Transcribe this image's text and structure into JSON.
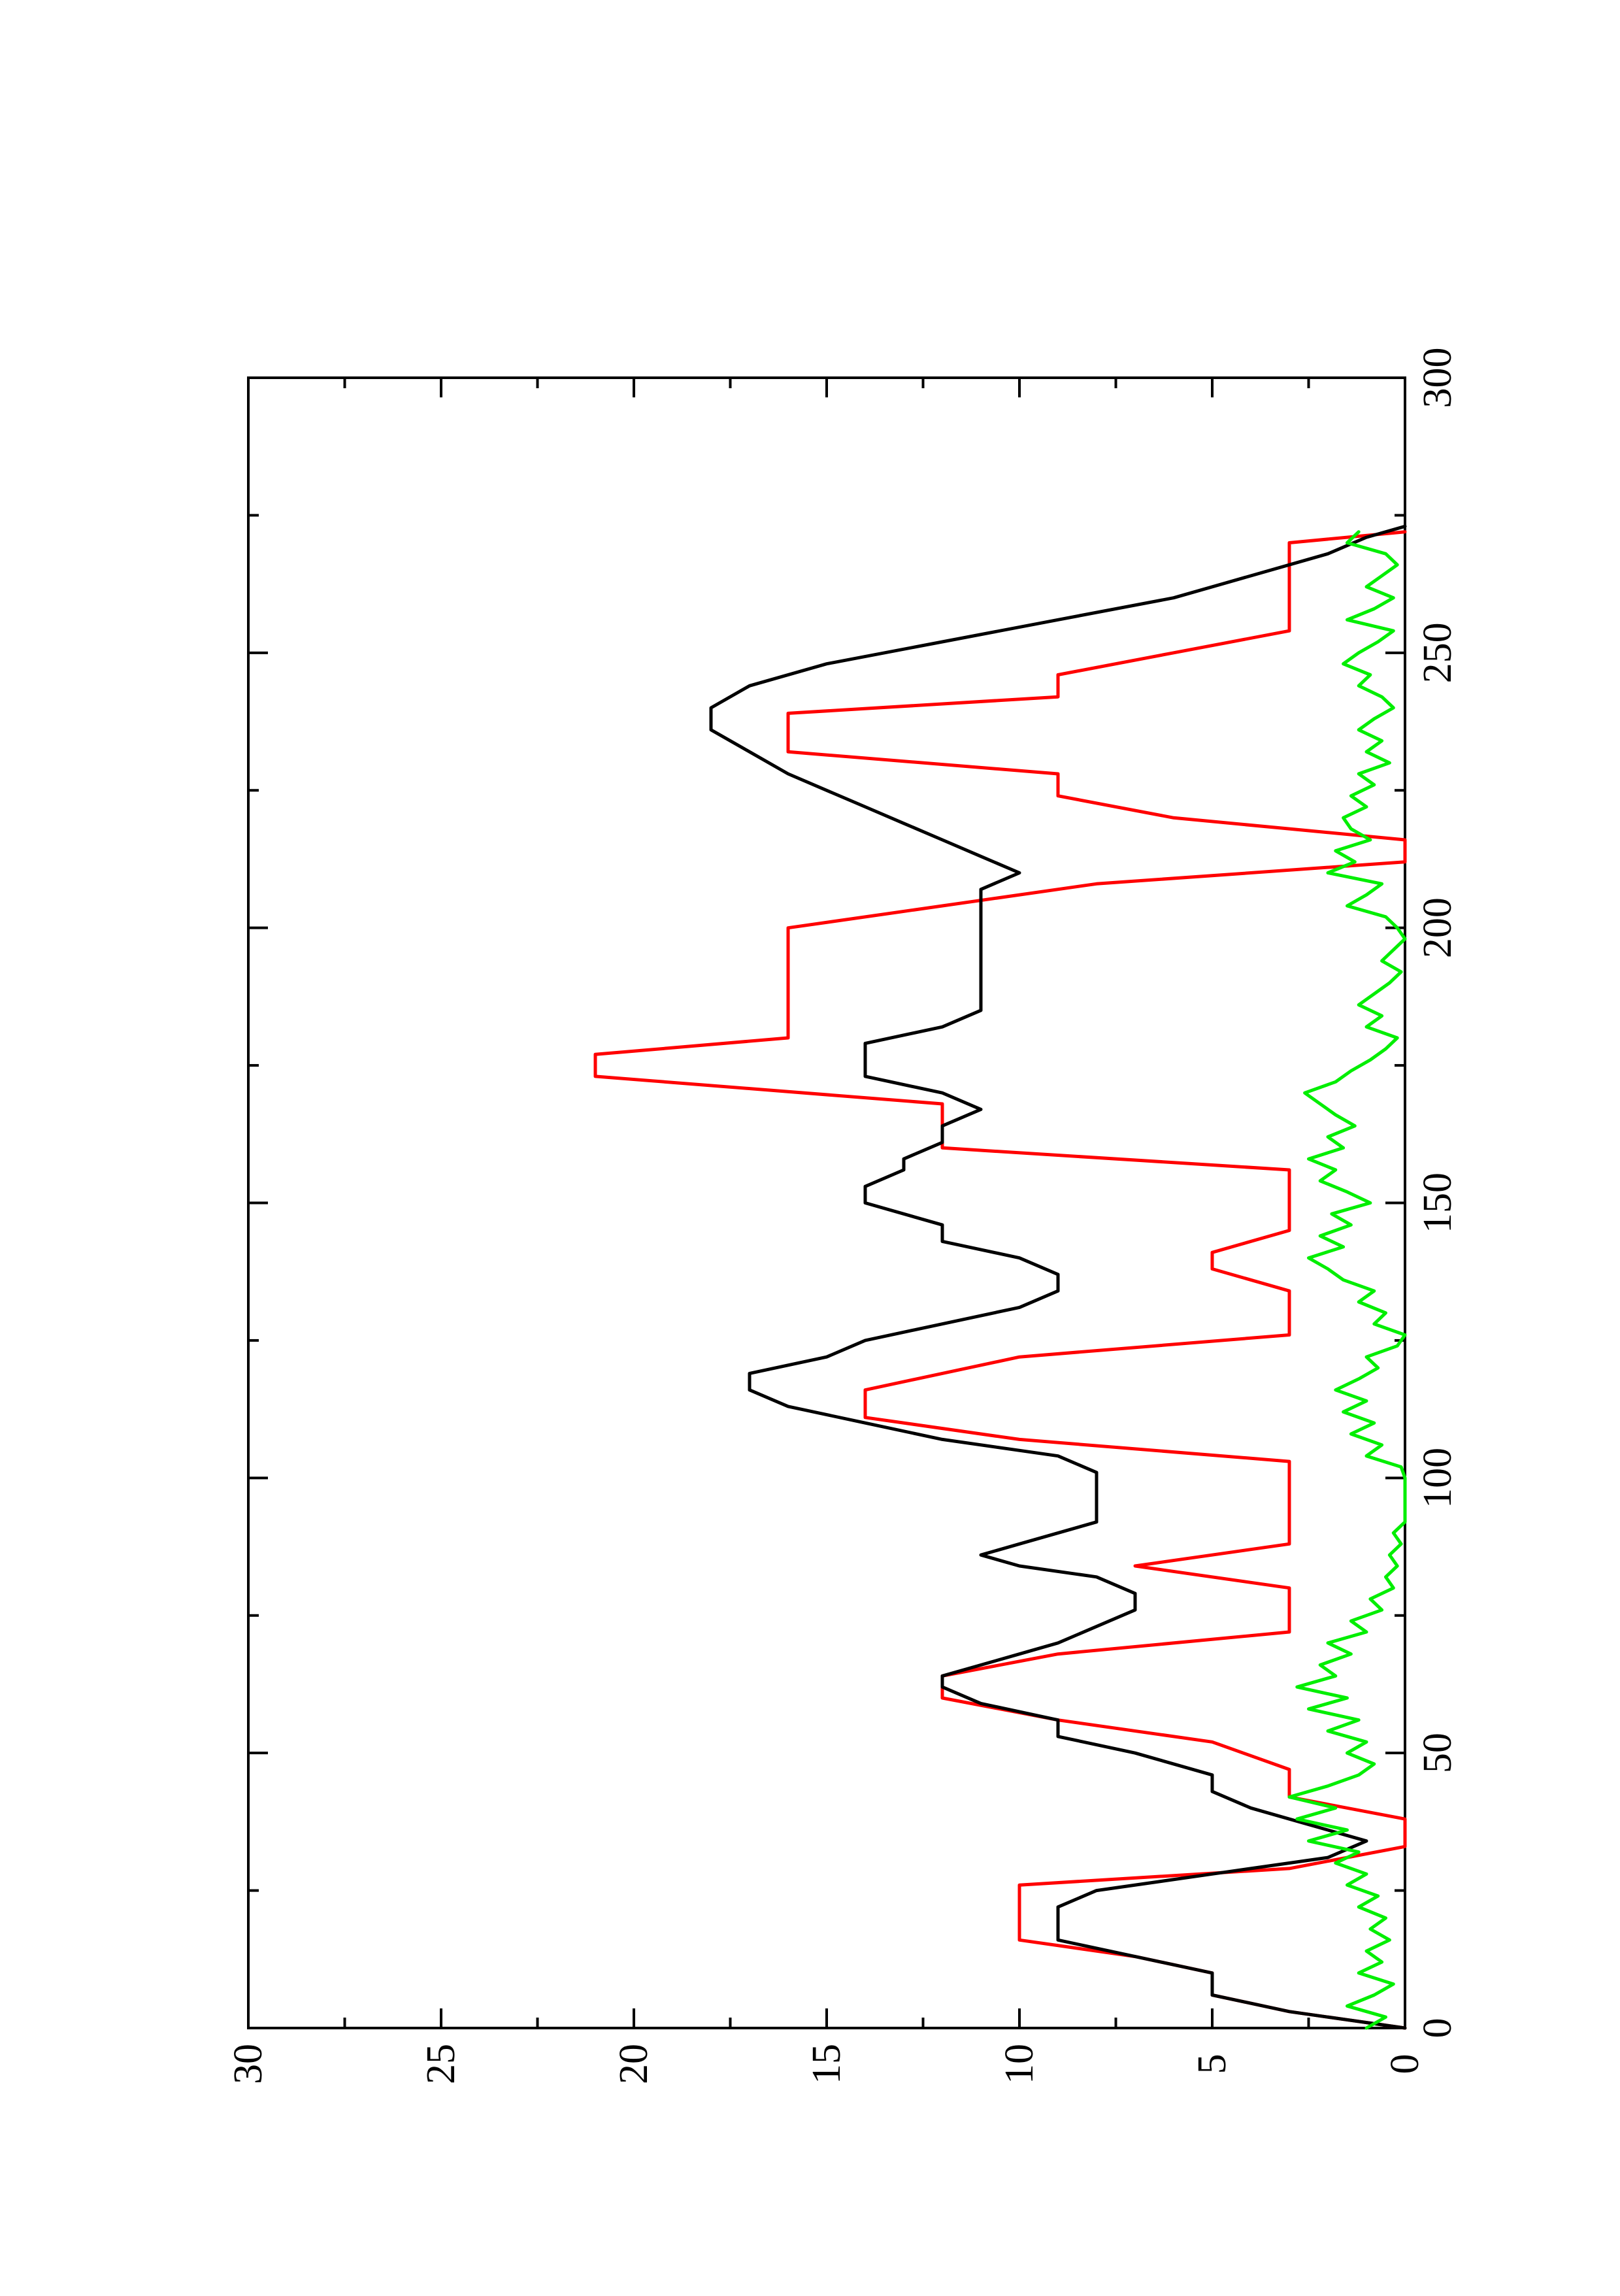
{
  "chart_data": {
    "type": "line",
    "orientation": "rotated 90 degrees counter-clockwise (page portrait)",
    "title": "",
    "xlabel": "",
    "ylabel": "",
    "xlim": [
      0,
      300
    ],
    "ylim": [
      0,
      30
    ],
    "x_ticks": [
      "0",
      "50",
      "100",
      "150",
      "200",
      "250",
      "300"
    ],
    "y_ticks": [
      "0",
      "5",
      "10",
      "15",
      "20",
      "25",
      "30"
    ],
    "grid": false,
    "legend": "none",
    "series": [
      {
        "color": "#ff0000",
        "x": [
          0,
          3,
          6,
          10,
          13,
          16,
          19,
          22,
          26,
          29,
          33,
          38,
          42,
          47,
          52,
          56,
          60,
          64,
          68,
          72,
          77,
          80,
          84,
          88,
          92,
          98,
          103,
          107,
          111,
          116,
          119,
          122,
          126,
          130,
          134,
          138,
          141,
          145,
          148,
          152,
          156,
          160,
          164,
          168,
          173,
          177,
          180,
          184,
          188,
          192,
          196,
          200,
          204,
          208,
          212,
          216,
          220,
          224,
          228,
          232,
          236,
          239,
          242,
          246,
          250,
          254,
          258,
          262,
          266,
          270,
          272
        ],
        "values": [
          0,
          3,
          5,
          5,
          7,
          10,
          10,
          10,
          10,
          3,
          0,
          0,
          3,
          3,
          5,
          9,
          12,
          12,
          9,
          3,
          3,
          3,
          7,
          3,
          3,
          3,
          3,
          10,
          14,
          14,
          12,
          10,
          3,
          3,
          3,
          5,
          5,
          3,
          3,
          3,
          3,
          12,
          12,
          12,
          21,
          21,
          16,
          16,
          16,
          16,
          16,
          16,
          12,
          8,
          0,
          0,
          6,
          9,
          9,
          16,
          16,
          16,
          9,
          9,
          6,
          3,
          3,
          3,
          3,
          3,
          0
        ]
      },
      {
        "color": "#000000",
        "x": [
          0,
          3,
          6,
          10,
          13,
          16,
          19,
          22,
          25,
          28,
          31,
          34,
          36,
          38,
          40,
          43,
          46,
          50,
          53,
          56,
          59,
          62,
          64,
          66,
          68,
          70,
          73,
          76,
          79,
          82,
          84,
          86,
          88,
          92,
          97,
          101,
          104,
          107,
          110,
          113,
          116,
          119,
          122,
          125,
          128,
          131,
          134,
          137,
          140,
          143,
          146,
          150,
          153,
          156,
          158,
          161,
          164,
          167,
          170,
          173,
          176,
          179,
          182,
          185,
          188,
          192,
          196,
          200,
          204,
          207,
          210,
          213,
          216,
          219,
          222,
          225,
          228,
          232,
          236,
          238,
          240,
          244,
          248,
          252,
          256,
          260,
          264,
          268,
          271,
          273
        ],
        "values": [
          0,
          3,
          5,
          5,
          7,
          9,
          9,
          9,
          8,
          5,
          2,
          1,
          2,
          3,
          4,
          5,
          5,
          7,
          9,
          9,
          11,
          12,
          12,
          11,
          10,
          9,
          8,
          7,
          7,
          8,
          10,
          11,
          10,
          8,
          8,
          8,
          9,
          12,
          14,
          16,
          17,
          17,
          15,
          14,
          12,
          10,
          9,
          9,
          10,
          12,
          12,
          14,
          14,
          13,
          13,
          12,
          12,
          11,
          12,
          14,
          14,
          14,
          12,
          11,
          11,
          11,
          11,
          11,
          11,
          11,
          10,
          11,
          12,
          13,
          14,
          15,
          16,
          17,
          18,
          18,
          18,
          17,
          15,
          12,
          9,
          6,
          4,
          2,
          1,
          0
        ]
      },
      {
        "color": "#00ee00",
        "x": [
          0,
          2,
          4,
          6,
          8,
          10,
          12,
          14,
          16,
          18,
          20,
          22,
          24,
          26,
          28,
          30,
          32,
          34,
          36,
          38,
          40,
          42,
          44,
          46,
          48,
          50,
          52,
          54,
          56,
          58,
          60,
          62,
          64,
          66,
          68,
          70,
          72,
          74,
          76,
          78,
          80,
          82,
          84,
          86,
          88,
          90,
          92,
          94,
          96,
          98,
          100,
          102,
          104,
          106,
          108,
          110,
          112,
          114,
          116,
          118,
          120,
          122,
          124,
          126,
          128,
          130,
          132,
          134,
          136,
          138,
          140,
          142,
          144,
          146,
          148,
          150,
          152,
          154,
          156,
          158,
          160,
          162,
          164,
          166,
          168,
          170,
          172,
          174,
          176,
          178,
          180,
          182,
          184,
          186,
          188,
          190,
          192,
          194,
          196,
          198,
          200,
          202,
          204,
          206,
          208,
          210,
          212,
          214,
          216,
          218,
          220,
          222,
          224,
          226,
          228,
          230,
          232,
          234,
          236,
          238,
          240,
          242,
          244,
          246,
          248,
          250,
          252,
          254,
          256,
          258,
          260,
          262,
          264,
          266,
          268,
          270,
          272
        ],
        "values": [
          1.0,
          0.5,
          1.5,
          0.8,
          0.3,
          1.2,
          0.6,
          1.0,
          0.4,
          0.9,
          0.5,
          1.2,
          0.7,
          1.5,
          1.0,
          1.8,
          1.2,
          2.5,
          1.5,
          2.8,
          1.8,
          3.0,
          2.0,
          1.2,
          0.8,
          1.5,
          1.0,
          2.0,
          1.2,
          2.5,
          1.5,
          2.8,
          1.8,
          2.2,
          1.4,
          2.0,
          1.0,
          1.4,
          0.6,
          0.9,
          0.3,
          0.5,
          0.2,
          0.4,
          0.1,
          0.3,
          0.0,
          0.0,
          0.0,
          0.0,
          0.0,
          0.1,
          1.0,
          0.6,
          1.4,
          0.8,
          1.6,
          1.0,
          1.8,
          1.2,
          0.7,
          1.0,
          0.2,
          0.0,
          0.8,
          0.5,
          1.2,
          0.8,
          1.6,
          2.0,
          2.5,
          1.6,
          2.2,
          1.4,
          1.9,
          0.9,
          1.5,
          2.2,
          1.8,
          2.5,
          1.6,
          2.0,
          1.3,
          1.8,
          2.2,
          2.6,
          1.8,
          1.4,
          0.9,
          0.5,
          0.2,
          1.0,
          0.6,
          1.2,
          0.8,
          0.4,
          0.1,
          0.6,
          0.3,
          0.0,
          0.2,
          0.5,
          1.5,
          1.0,
          0.6,
          2.0,
          1.3,
          1.8,
          0.9,
          1.4,
          1.6,
          1.0,
          1.4,
          0.8,
          1.2,
          0.4,
          1.0,
          0.6,
          1.2,
          0.8,
          0.3,
          0.6,
          1.2,
          0.9,
          1.6,
          1.2,
          0.7,
          0.3,
          1.5,
          0.8,
          0.3,
          1.0,
          0.6,
          0.2,
          0.5,
          1.5,
          1.2
        ]
      }
    ]
  }
}
